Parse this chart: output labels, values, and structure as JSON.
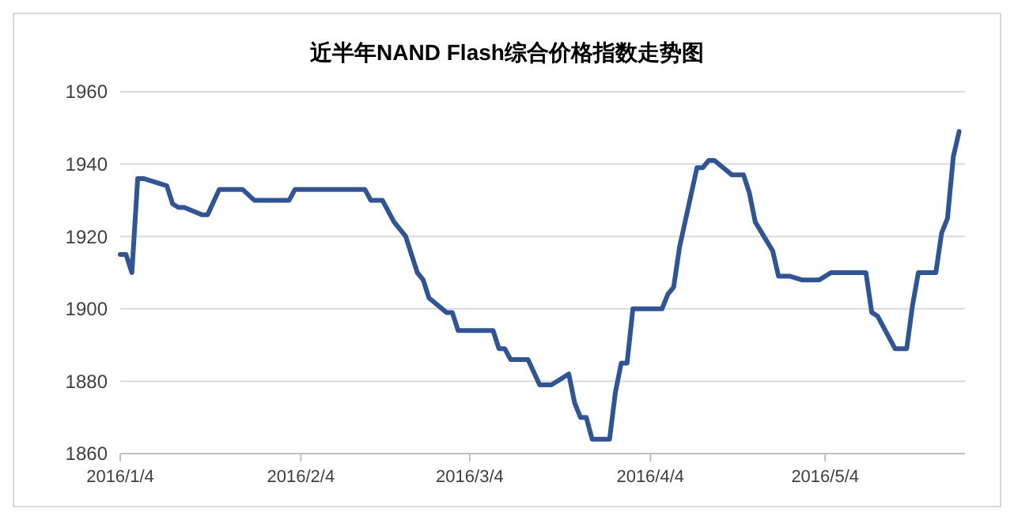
{
  "chart_data": {
    "type": "line",
    "title": "近半年NAND Flash综合价格指数走势图",
    "x": [
      "2016-01-04",
      "2016-01-05",
      "2016-01-06",
      "2016-01-07",
      "2016-01-08",
      "2016-01-12",
      "2016-01-13",
      "2016-01-14",
      "2016-01-15",
      "2016-01-18",
      "2016-01-19",
      "2016-01-21",
      "2016-01-25",
      "2016-01-27",
      "2016-02-02",
      "2016-02-03",
      "2016-02-15",
      "2016-02-16",
      "2016-02-18",
      "2016-02-20",
      "2016-02-22",
      "2016-02-24",
      "2016-02-25",
      "2016-02-26",
      "2016-02-29",
      "2016-03-01",
      "2016-03-02",
      "2016-03-08",
      "2016-03-09",
      "2016-03-10",
      "2016-03-11",
      "2016-03-14",
      "2016-03-16",
      "2016-03-18",
      "2016-03-21",
      "2016-03-22",
      "2016-03-23",
      "2016-03-24",
      "2016-03-25",
      "2016-03-28",
      "2016-03-29",
      "2016-03-30",
      "2016-03-31",
      "2016-04-01",
      "2016-04-06",
      "2016-04-07",
      "2016-04-08",
      "2016-04-09",
      "2016-04-12",
      "2016-04-13",
      "2016-04-14",
      "2016-04-15",
      "2016-04-18",
      "2016-04-20",
      "2016-04-21",
      "2016-04-22",
      "2016-04-25",
      "2016-04-26",
      "2016-04-28",
      "2016-04-30",
      "2016-05-03",
      "2016-05-05",
      "2016-05-11",
      "2016-05-12",
      "2016-05-13",
      "2016-05-16",
      "2016-05-18",
      "2016-05-19",
      "2016-05-20",
      "2016-05-23",
      "2016-05-24",
      "2016-05-25",
      "2016-05-26",
      "2016-05-27"
    ],
    "series": [
      {
        "color": "#2f5597",
        "values": [
          1915,
          1915,
          1910,
          1936,
          1936,
          1934,
          1929,
          1928,
          1928,
          1926,
          1926,
          1933,
          1933,
          1930,
          1930,
          1933,
          1933,
          1930,
          1930,
          1924,
          1920,
          1910,
          1908,
          1903,
          1899,
          1899,
          1894,
          1894,
          1889,
          1889,
          1886,
          1886,
          1879,
          1879,
          1882,
          1874,
          1870,
          1870,
          1864,
          1864,
          1877,
          1885,
          1885,
          1900,
          1900,
          1904,
          1906,
          1917,
          1939,
          1939,
          1941,
          1941,
          1937,
          1937,
          1932,
          1924,
          1916,
          1909,
          1909,
          1908,
          1908,
          1910,
          1910,
          1899,
          1898,
          1889,
          1889,
          1901,
          1910,
          1910,
          1921,
          1925,
          1942,
          1949
        ]
      }
    ],
    "xlim": [
      "2016-01-04",
      "2016-05-28"
    ],
    "xticks": [
      {
        "value": "2016-01-04",
        "label": "2016/1/4"
      },
      {
        "value": "2016-02-04",
        "label": "2016/2/4"
      },
      {
        "value": "2016-03-04",
        "label": "2016/3/4"
      },
      {
        "value": "2016-04-04",
        "label": "2016/4/4"
      },
      {
        "value": "2016-05-04",
        "label": "2016/5/4"
      }
    ],
    "ylim": [
      1860,
      1960
    ],
    "yticks": [
      1860,
      1880,
      1900,
      1920,
      1940,
      1960
    ],
    "grid": "y",
    "marker": "none",
    "line_style": "solid"
  }
}
